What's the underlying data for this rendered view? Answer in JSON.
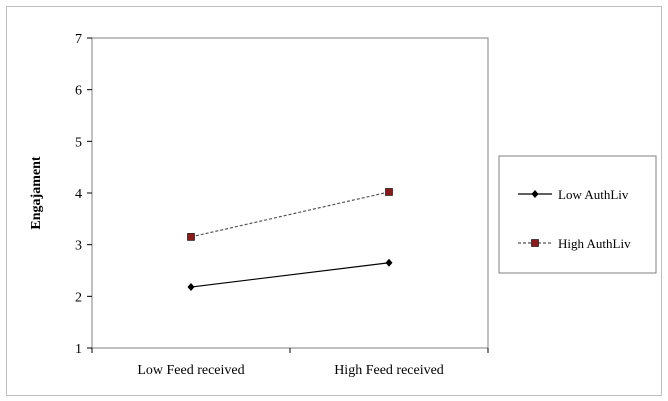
{
  "chart_data": {
    "type": "line",
    "title": "",
    "xlabel": "",
    "ylabel": "Engajament",
    "categories": [
      "Low Feed received",
      "High Feed received"
    ],
    "ylim": [
      1,
      7
    ],
    "yticks": [
      "1",
      "2",
      "3",
      "4",
      "5",
      "6",
      "7"
    ],
    "grid": false,
    "legend_position": "right",
    "series": [
      {
        "name": "Low AuthLiv",
        "values": [
          2.18,
          2.65
        ],
        "color": "#000000",
        "marker": "diamond",
        "line": "solid"
      },
      {
        "name": "High AuthLiv",
        "values": [
          3.15,
          4.02
        ],
        "color": "#8b1a1a",
        "marker": "square",
        "line": "dashed"
      }
    ]
  }
}
